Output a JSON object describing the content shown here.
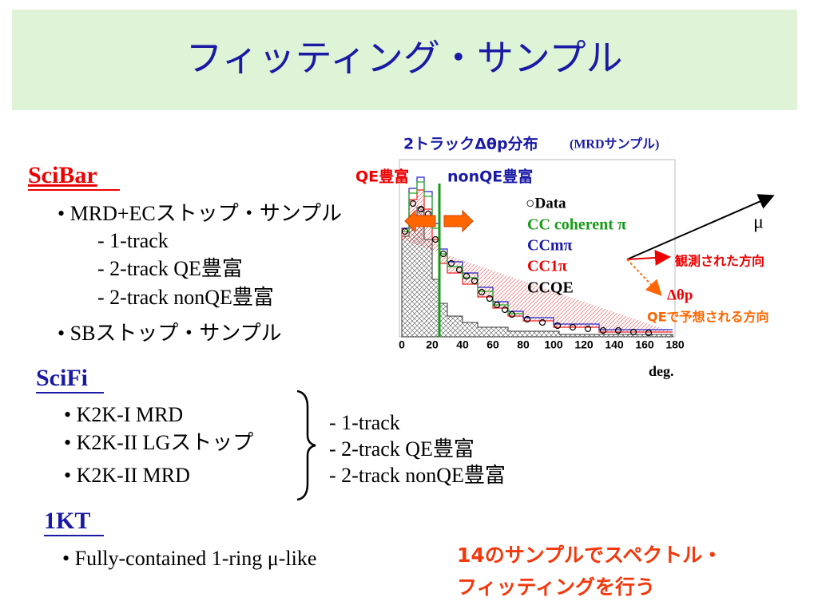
{
  "header": {
    "title": "フィッティング・サンプル"
  },
  "scibar": {
    "heading": "SciBar",
    "items": [
      "• MRD+ECストップ・サンプル",
      "- 1-track",
      "- 2-track QE豊富",
      "- 2-track nonQE豊富",
      "• SBストップ・サンプル"
    ]
  },
  "scifi": {
    "heading": "SciFi",
    "items": [
      "• K2K-I MRD",
      "• K2K-II LGストップ",
      "• K2K-II MRD"
    ],
    "samples": [
      "- 1-track",
      "- 2-track QE豊富",
      "- 2-track nonQE豊富"
    ]
  },
  "onekt": {
    "heading": "1KT",
    "items": [
      "• Fully-contained 1-ring μ-like"
    ]
  },
  "histogram": {
    "title": "2トラックΔθp分布",
    "subtitle": "(MRDサンプル)",
    "region_labels": [
      "QE豊富",
      "nonQE豊富"
    ],
    "legend": [
      "○Data",
      "CC coherent π",
      "CCmπ",
      "CC1π",
      "CCQE"
    ],
    "x_tick_labels": [
      "0",
      "20",
      "40",
      "60",
      "80",
      "100",
      "120",
      "140",
      "160",
      "180"
    ],
    "x_unit": "deg."
  },
  "vector_diagram": {
    "muon": "μ",
    "observed": "観測された方向",
    "delta": "Δθp",
    "expected": "QEで予想される方向"
  },
  "note": [
    "14のサンプルでスペクトル・",
    "フィッティングを行う"
  ]
}
